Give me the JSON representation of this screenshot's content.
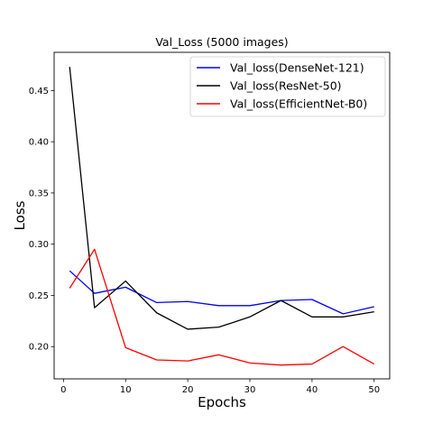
{
  "chart_data": {
    "type": "line",
    "title": "Val_Loss (5000 images)",
    "xlabel": "Epochs",
    "ylabel": "Loss",
    "xlim": [
      -1.5,
      52.5
    ],
    "ylim": [
      0.1685,
      0.4873
    ],
    "xticks": [
      0,
      10,
      20,
      30,
      40,
      50
    ],
    "yticks": [
      0.2,
      0.25,
      0.3,
      0.35,
      0.4,
      0.45
    ],
    "ytick_labels": [
      "0.20",
      "0.25",
      "0.30",
      "0.35",
      "0.40",
      "0.45"
    ],
    "grid": false,
    "legend_position": "top-right",
    "x": [
      1,
      5,
      10,
      15,
      20,
      25,
      30,
      35,
      40,
      45,
      50
    ],
    "series": [
      {
        "name": "Val_loss(DenseNet-121)",
        "color": "#0000ff",
        "values": [
          0.274,
          0.252,
          0.258,
          0.243,
          0.244,
          0.24,
          0.24,
          0.245,
          0.246,
          0.232,
          0.239
        ]
      },
      {
        "name": "Val_loss(ResNet-50)",
        "color": "#000000",
        "values": [
          0.473,
          0.238,
          0.264,
          0.233,
          0.217,
          0.219,
          0.229,
          0.245,
          0.229,
          0.229,
          0.234
        ]
      },
      {
        "name": "Val_loss(EfficientNet-B0)",
        "color": "#ff0000",
        "values": [
          0.257,
          0.295,
          0.199,
          0.187,
          0.186,
          0.192,
          0.184,
          0.182,
          0.183,
          0.2,
          0.183
        ]
      }
    ]
  }
}
